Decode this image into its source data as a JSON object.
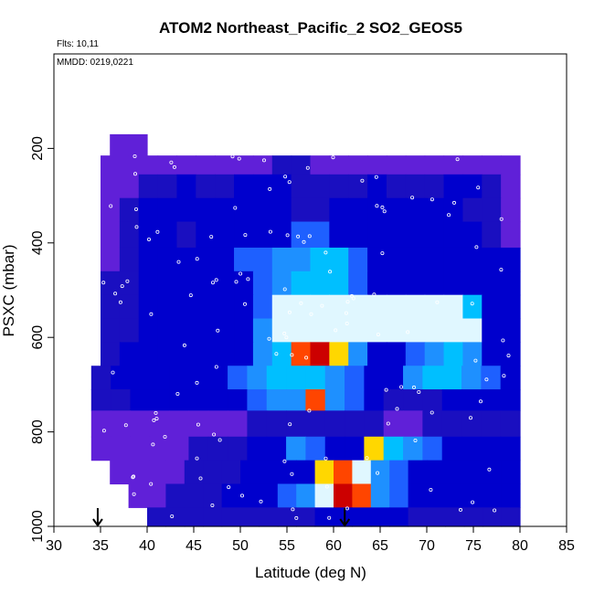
{
  "chart_data": {
    "type": "heatmap",
    "title": "ATOM2 Northeast_Pacific_2 SO2_GEOS5",
    "annotations": {
      "flights": "Flts: 10,11",
      "dates": "MMDD: 0219,0221"
    },
    "xlabel": "Latitude (deg N)",
    "ylabel": "PSXC (mbar)",
    "xlim": [
      30,
      85
    ],
    "ylim": [
      1000,
      0
    ],
    "x_ticks": [
      "30",
      "35",
      "40",
      "45",
      "50",
      "55",
      "60",
      "65",
      "70",
      "75",
      "80",
      "85"
    ],
    "y_ticks": [
      "200",
      "400",
      "600",
      "800",
      "1000"
    ],
    "y_tick_values": [
      200,
      400,
      600,
      800,
      1000
    ],
    "colors": {
      "background": "#5a00e6",
      "low": "#8a2be2",
      "mid_low": "#0000cd",
      "mid": "#1e90ff",
      "high": "#ffffff",
      "peak": "#ff0000"
    },
    "markers": {
      "arrows_at_lat": [
        34.7,
        61.2
      ],
      "style": "down-arrow",
      "points_color": "#ffffff"
    },
    "layers": [
      {
        "p_top": 170,
        "p_bot": 215,
        "lat_start": 36,
        "lat_end": 40,
        "values": [
          1,
          1
        ]
      },
      {
        "p_top": 215,
        "p_bot": 255,
        "lat_start": 35,
        "lat_end": 80,
        "values": [
          1,
          1,
          1,
          1,
          1,
          1,
          1,
          1,
          1,
          2,
          2,
          1,
          1,
          1,
          1,
          1,
          1,
          1,
          1,
          1,
          1,
          1
        ]
      },
      {
        "p_top": 255,
        "p_bot": 305,
        "lat_start": 35,
        "lat_end": 80,
        "values": [
          1,
          1,
          2,
          2,
          3,
          2,
          2,
          3,
          3,
          3,
          2,
          2,
          2,
          2,
          3,
          2,
          2,
          2,
          3,
          3,
          2,
          1
        ]
      },
      {
        "p_top": 305,
        "p_bot": 355,
        "lat_start": 35,
        "lat_end": 80,
        "values": [
          1,
          2,
          3,
          3,
          3,
          3,
          3,
          3,
          3,
          3,
          2,
          2,
          3,
          3,
          3,
          3,
          3,
          3,
          3,
          2,
          2,
          1
        ]
      },
      {
        "p_top": 355,
        "p_bot": 410,
        "lat_start": 35,
        "lat_end": 80,
        "values": [
          1,
          2,
          3,
          3,
          2,
          3,
          3,
          3,
          3,
          3,
          4,
          4,
          3,
          3,
          3,
          3,
          3,
          3,
          3,
          3,
          2,
          1
        ]
      },
      {
        "p_top": 410,
        "p_bot": 460,
        "lat_start": 35,
        "lat_end": 80,
        "values": [
          1,
          2,
          3,
          3,
          3,
          3,
          3,
          4,
          4,
          5,
          5,
          6,
          6,
          4,
          3,
          3,
          3,
          3,
          3,
          3,
          3,
          3
        ]
      },
      {
        "p_top": 460,
        "p_bot": 510,
        "lat_start": 35,
        "lat_end": 80,
        "values": [
          2,
          2,
          3,
          3,
          3,
          3,
          3,
          3,
          4,
          5,
          6,
          6,
          6,
          4,
          3,
          3,
          3,
          3,
          3,
          3,
          3,
          3
        ]
      },
      {
        "p_top": 510,
        "p_bot": 560,
        "lat_start": 35,
        "lat_end": 80,
        "values": [
          2,
          2,
          3,
          3,
          3,
          3,
          3,
          3,
          4,
          7,
          7,
          7,
          7,
          7,
          7,
          7,
          7,
          7,
          7,
          6,
          3,
          3
        ]
      },
      {
        "p_top": 560,
        "p_bot": 610,
        "lat_start": 35,
        "lat_end": 80,
        "values": [
          2,
          2,
          3,
          3,
          3,
          3,
          3,
          3,
          5,
          7,
          7,
          7,
          7,
          7,
          7,
          7,
          7,
          7,
          7,
          7,
          3,
          3
        ]
      },
      {
        "p_top": 610,
        "p_bot": 660,
        "lat_start": 35,
        "lat_end": 80,
        "values": [
          2,
          3,
          3,
          3,
          3,
          3,
          3,
          3,
          5,
          6,
          9,
          10,
          8,
          5,
          3,
          3,
          4,
          5,
          6,
          5,
          3,
          3
        ]
      },
      {
        "p_top": 660,
        "p_bot": 710,
        "lat_start": 34,
        "lat_end": 80,
        "values": [
          2,
          3,
          3,
          3,
          3,
          3,
          3,
          4,
          5,
          6,
          6,
          6,
          5,
          4,
          3,
          3,
          5,
          6,
          6,
          5,
          4,
          3
        ]
      },
      {
        "p_top": 710,
        "p_bot": 755,
        "lat_start": 34,
        "lat_end": 80,
        "values": [
          2,
          2,
          3,
          3,
          3,
          3,
          3,
          3,
          4,
          5,
          5,
          9,
          5,
          4,
          3,
          2,
          2,
          2,
          3,
          3,
          3,
          3
        ]
      },
      {
        "p_top": 755,
        "p_bot": 810,
        "lat_start": 34,
        "lat_end": 80,
        "values": [
          1,
          1,
          1,
          1,
          1,
          1,
          1,
          1,
          2,
          2,
          2,
          2,
          2,
          2,
          2,
          1,
          1,
          2,
          2,
          2,
          2,
          2
        ]
      },
      {
        "p_top": 810,
        "p_bot": 860,
        "lat_start": 34,
        "lat_end": 80,
        "values": [
          1,
          1,
          1,
          1,
          1,
          2,
          2,
          2,
          3,
          3,
          5,
          4,
          3,
          3,
          8,
          6,
          5,
          4,
          3,
          3,
          3,
          3
        ]
      },
      {
        "p_top": 860,
        "p_bot": 910,
        "lat_start": 36,
        "lat_end": 80,
        "values": [
          1,
          1,
          1,
          1,
          2,
          2,
          2,
          3,
          3,
          3,
          3,
          8,
          9,
          7,
          5,
          4,
          3,
          3,
          3,
          3,
          3,
          3
        ]
      },
      {
        "p_top": 910,
        "p_bot": 960,
        "lat_start": 38,
        "lat_end": 80,
        "values": [
          1,
          1,
          2,
          2,
          2,
          3,
          3,
          3,
          4,
          5,
          7,
          10,
          9,
          5,
          4,
          3,
          3,
          3,
          3,
          3,
          3
        ]
      },
      {
        "p_top": 960,
        "p_bot": 1000,
        "lat_start": 40,
        "lat_end": 80,
        "values": [
          2,
          2,
          2,
          2,
          2,
          2,
          2,
          2,
          2,
          3,
          3,
          3,
          3,
          3,
          2,
          2,
          2,
          2,
          2,
          2
        ]
      }
    ]
  }
}
